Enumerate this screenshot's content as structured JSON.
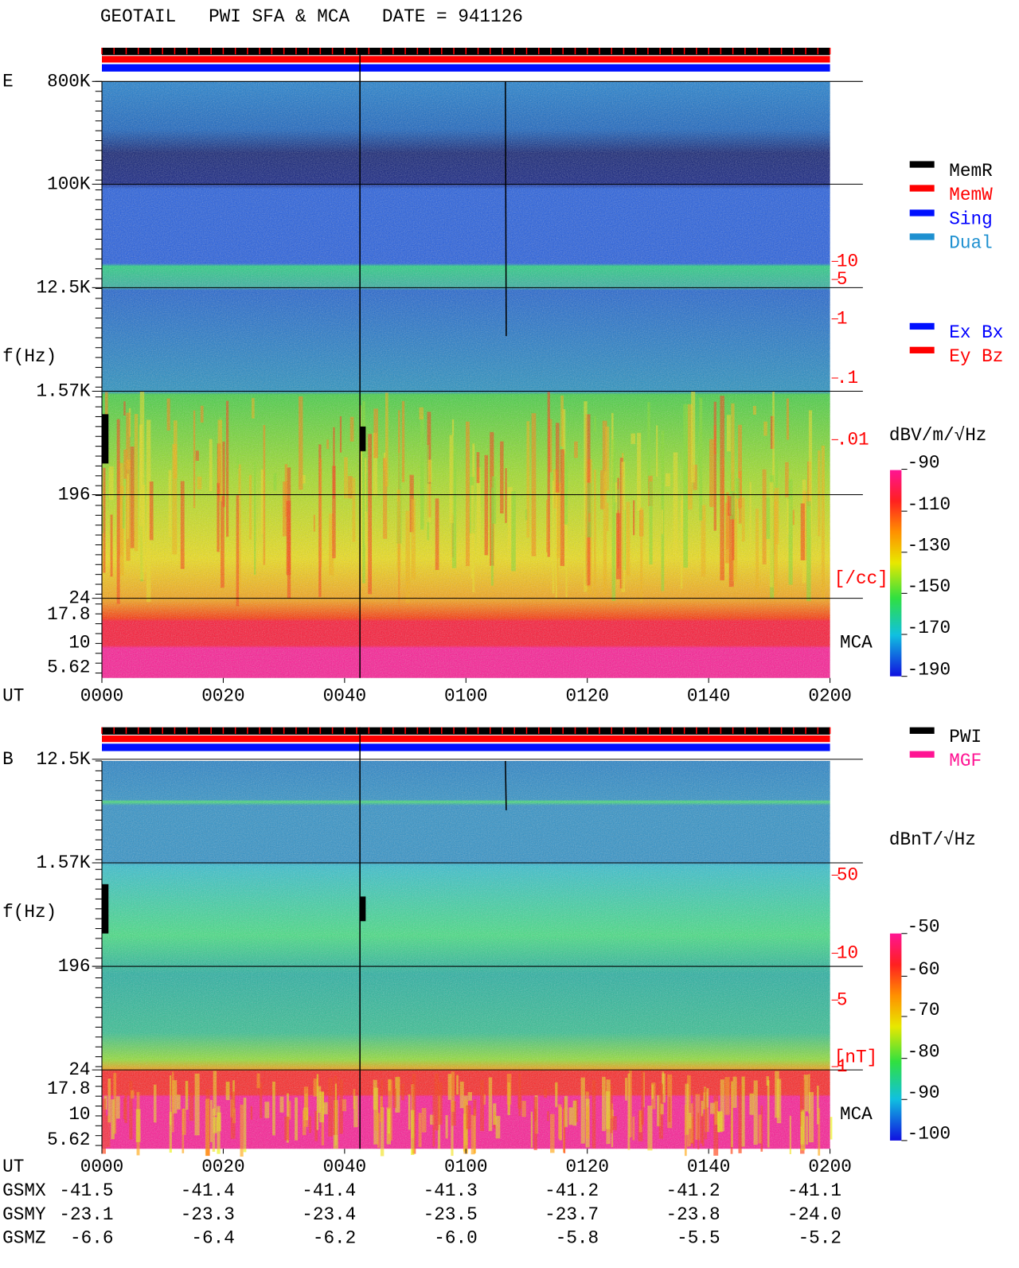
{
  "header": {
    "title": "GEOTAIL   PWI SFA & MCA   DATE = 941126"
  },
  "panels": [
    {
      "label": "E",
      "frequency_ticks": [
        "800K",
        "100K",
        "12.5K",
        "1.57K",
        "196",
        "24",
        "17.8",
        "10",
        "5.62"
      ],
      "y_label": "f(Hz)",
      "density_ticks": [
        "10",
        "5",
        "1",
        ".1",
        ".01"
      ],
      "density_unit": "[/cc]",
      "mca_label": "MCA",
      "time_label": "UT",
      "time_ticks": [
        "0000",
        "0020",
        "0040",
        "0100",
        "0120",
        "0140",
        "0200"
      ],
      "colorbar": {
        "unit": "dBV/m/√Hz",
        "ticks": [
          "-90",
          "-110",
          "-130",
          "-150",
          "-170",
          "-190"
        ]
      }
    },
    {
      "label": "B",
      "frequency_ticks": [
        "12.5K",
        "1.57K",
        "196",
        "24",
        "17.8",
        "10",
        "5.62"
      ],
      "y_label": "f(Hz)",
      "density_ticks": [
        "50",
        "10",
        "5",
        "1"
      ],
      "density_unit": "[nT]",
      "mca_label": "MCA",
      "time_label": "UT",
      "time_ticks": [
        "0000",
        "0020",
        "0040",
        "0100",
        "0120",
        "0140",
        "0200"
      ],
      "colorbar": {
        "unit": "dBnT/√Hz",
        "ticks": [
          "-50",
          "-60",
          "-70",
          "-80",
          "-90",
          "-100"
        ]
      }
    }
  ],
  "legend_top": [
    "MemR",
    "MemW",
    "Sing",
    "Dual"
  ],
  "legend_mode": [
    "Ex Bx",
    "Ey Bz"
  ],
  "legend_bottom": [
    "PWI",
    "MGF"
  ],
  "position": [
    {
      "label": "GSMX",
      "values": [
        "-41.5",
        "-41.4",
        "-41.4",
        "-41.3",
        "-41.2",
        "-41.2",
        "-41.1"
      ]
    },
    {
      "label": "GSMY",
      "values": [
        "-23.1",
        "-23.3",
        "-23.4",
        "-23.5",
        "-23.7",
        "-23.8",
        "-24.0"
      ]
    },
    {
      "label": "GSMZ",
      "values": [
        "-6.6",
        "-6.4",
        "-6.2",
        "-6.0",
        "-5.8",
        "-5.5",
        "-5.2"
      ]
    }
  ]
}
